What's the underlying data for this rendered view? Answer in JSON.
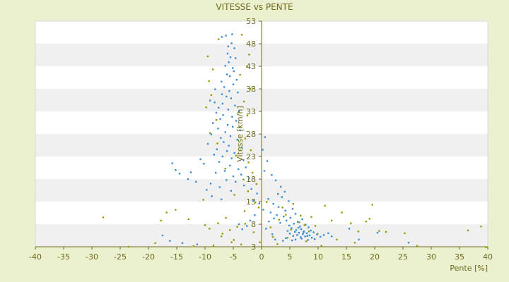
{
  "chart_data": {
    "type": "scatter",
    "title": "VITESSE vs PENTE",
    "xlabel": "Pente [%]",
    "ylabel": "Vitesse [km/h]",
    "xlim": [
      -40,
      40
    ],
    "ylim": [
      3,
      53
    ],
    "x_ticks": [
      -40,
      -35,
      -30,
      -25,
      -20,
      -15,
      -10,
      -5,
      0,
      5,
      10,
      15,
      20,
      25,
      30,
      35,
      40
    ],
    "y_ticks": [
      3,
      8,
      13,
      18,
      23,
      28,
      33,
      38,
      43,
      48,
      53
    ],
    "grid": "horizontal-bands",
    "colors": {
      "background": "#ebf1cf",
      "plot_band_light": "#ffffff",
      "plot_band_dark": "#f0f0f0",
      "axis": "#6e6a1f",
      "series_main": "#3b8fd8",
      "series_secondary": "#9a9a00"
    },
    "series": [
      {
        "color": "#3b8fd8",
        "points": [
          [
            -7.0,
            49.5
          ],
          [
            -6.3,
            49.8
          ],
          [
            -5.2,
            50.1
          ],
          [
            -5.9,
            47.4
          ],
          [
            -5.3,
            48.1
          ],
          [
            -4.8,
            47.0
          ],
          [
            -6.0,
            45.8
          ],
          [
            -5.5,
            45.0
          ],
          [
            -4.6,
            44.8
          ],
          [
            -5.8,
            43.9
          ],
          [
            -6.4,
            43.1
          ],
          [
            -5.1,
            42.6
          ],
          [
            -4.9,
            41.9
          ],
          [
            -6.1,
            41.2
          ],
          [
            -5.6,
            40.8
          ],
          [
            -4.4,
            40.0
          ],
          [
            -7.1,
            39.6
          ],
          [
            -5.0,
            39.0
          ],
          [
            -6.6,
            38.4
          ],
          [
            -8.2,
            37.9
          ],
          [
            -5.7,
            37.5
          ],
          [
            -4.2,
            37.2
          ],
          [
            -7.0,
            36.8
          ],
          [
            -6.2,
            36.3
          ],
          [
            -5.4,
            35.9
          ],
          [
            -9.1,
            35.4
          ],
          [
            -8.3,
            35.0
          ],
          [
            -6.9,
            34.7
          ],
          [
            -4.7,
            34.3
          ],
          [
            -7.6,
            33.8
          ],
          [
            -5.9,
            33.4
          ],
          [
            -4.0,
            33.0
          ],
          [
            -8.0,
            32.7
          ],
          [
            -6.8,
            32.2
          ],
          [
            -5.2,
            31.8
          ],
          [
            -7.3,
            31.3
          ],
          [
            -4.5,
            30.9
          ],
          [
            -8.6,
            30.4
          ],
          [
            -6.0,
            30.0
          ],
          [
            -5.1,
            29.6
          ],
          [
            -7.7,
            29.2
          ],
          [
            -3.8,
            28.8
          ],
          [
            -6.4,
            28.4
          ],
          [
            -8.9,
            27.9
          ],
          [
            -5.5,
            27.5
          ],
          [
            -7.2,
            27.1
          ],
          [
            -4.3,
            26.7
          ],
          [
            -6.7,
            26.2
          ],
          [
            -9.5,
            25.8
          ],
          [
            -5.8,
            25.4
          ],
          [
            -3.5,
            25.0
          ],
          [
            -7.9,
            24.6
          ],
          [
            -6.1,
            24.2
          ],
          [
            -4.8,
            23.8
          ],
          [
            -8.4,
            23.4
          ],
          [
            -6.9,
            23.0
          ],
          [
            -5.3,
            22.6
          ],
          [
            -3.2,
            22.2
          ],
          [
            -7.5,
            21.8
          ],
          [
            -10.2,
            21.4
          ],
          [
            -5.6,
            21.0
          ],
          [
            -2.8,
            20.6
          ],
          [
            -4.1,
            20.2
          ],
          [
            -6.5,
            19.8
          ],
          [
            -8.1,
            19.4
          ],
          [
            -3.6,
            19.0
          ],
          [
            -5.0,
            18.6
          ],
          [
            -2.2,
            18.2
          ],
          [
            -6.2,
            17.8
          ],
          [
            -4.6,
            17.4
          ],
          [
            -9.0,
            17.0
          ],
          [
            -3.1,
            16.6
          ],
          [
            -7.4,
            16.2
          ],
          [
            -1.8,
            15.8
          ],
          [
            -5.4,
            15.4
          ],
          [
            -15.8,
            21.5
          ],
          [
            -15.2,
            20.0
          ],
          [
            -14.5,
            19.2
          ],
          [
            -13.0,
            18.0
          ],
          [
            -12.5,
            19.5
          ],
          [
            -10.8,
            22.4
          ],
          [
            -11.6,
            17.4
          ],
          [
            -9.7,
            15.6
          ],
          [
            -8.8,
            14.2
          ],
          [
            -7.1,
            13.5
          ],
          [
            -0.8,
            14.8
          ],
          [
            -1.5,
            13.2
          ],
          [
            -0.4,
            12.6
          ],
          [
            0.6,
            27.3
          ],
          [
            0.2,
            24.5
          ],
          [
            1.0,
            22.0
          ],
          [
            0.5,
            19.8
          ],
          [
            1.8,
            18.9
          ],
          [
            2.5,
            17.7
          ],
          [
            3.4,
            16.3
          ],
          [
            4.1,
            15.2
          ],
          [
            2.9,
            14.7
          ],
          [
            3.6,
            14.0
          ],
          [
            1.2,
            13.6
          ],
          [
            4.8,
            13.1
          ],
          [
            2.1,
            12.5
          ],
          [
            3.0,
            11.8
          ],
          [
            5.5,
            11.4
          ],
          [
            4.2,
            11.0
          ],
          [
            1.6,
            10.6
          ],
          [
            6.0,
            10.3
          ],
          [
            2.7,
            10.0
          ],
          [
            3.9,
            9.7
          ],
          [
            5.1,
            9.4
          ],
          [
            7.2,
            9.1
          ],
          [
            4.4,
            8.8
          ],
          [
            6.4,
            8.5
          ],
          [
            3.3,
            8.3
          ],
          [
            5.7,
            8.1
          ],
          [
            7.8,
            7.9
          ],
          [
            4.9,
            7.7
          ],
          [
            6.8,
            7.5
          ],
          [
            8.3,
            7.3
          ],
          [
            5.3,
            7.1
          ],
          [
            7.0,
            6.9
          ],
          [
            6.1,
            6.7
          ],
          [
            8.7,
            6.6
          ],
          [
            4.6,
            6.5
          ],
          [
            7.5,
            6.4
          ],
          [
            5.9,
            6.3
          ],
          [
            9.2,
            6.2
          ],
          [
            6.6,
            6.1
          ],
          [
            8.0,
            6.0
          ],
          [
            5.0,
            5.9
          ],
          [
            7.3,
            5.8
          ],
          [
            9.8,
            5.7
          ],
          [
            6.3,
            5.6
          ],
          [
            8.5,
            5.5
          ],
          [
            5.6,
            5.4
          ],
          [
            7.7,
            5.3
          ],
          [
            10.4,
            5.2
          ],
          [
            6.9,
            5.1
          ],
          [
            8.9,
            5.0
          ],
          [
            4.3,
            4.9
          ],
          [
            7.1,
            4.8
          ],
          [
            9.4,
            4.7
          ],
          [
            6.0,
            4.6
          ],
          [
            8.2,
            4.5
          ],
          [
            5.4,
            4.4
          ],
          [
            11.0,
            5.6
          ],
          [
            11.8,
            6.0
          ],
          [
            12.4,
            5.3
          ],
          [
            3.8,
            4.3
          ],
          [
            2.4,
            4.6
          ],
          [
            1.9,
            5.8
          ],
          [
            0.8,
            7.0
          ],
          [
            1.3,
            8.6
          ],
          [
            2.2,
            9.3
          ],
          [
            0.3,
            11.2
          ],
          [
            -1.2,
            10.0
          ],
          [
            -2.0,
            8.8
          ],
          [
            -2.6,
            7.6
          ],
          [
            -3.4,
            6.9
          ],
          [
            -4.0,
            8.0
          ],
          [
            -17.5,
            5.5
          ],
          [
            -16.2,
            4.3
          ],
          [
            -14.0,
            3.8
          ],
          [
            -11.4,
            3.5
          ],
          [
            15.5,
            7.0
          ],
          [
            17.2,
            4.6
          ],
          [
            20.5,
            6.1
          ],
          [
            26.0,
            3.9
          ],
          [
            6.5,
            7.2
          ],
          [
            7.4,
            6.2
          ],
          [
            8.1,
            5.4
          ]
        ]
      },
      {
        "color": "#9a9a00",
        "points": [
          [
            -3.5,
            50.0
          ],
          [
            -7.6,
            49.0
          ],
          [
            -2.2,
            45.6
          ],
          [
            -9.5,
            45.2
          ],
          [
            -2.6,
            43.0
          ],
          [
            -8.6,
            42.3
          ],
          [
            -3.8,
            41.1
          ],
          [
            -9.3,
            39.7
          ],
          [
            -2.0,
            38.0
          ],
          [
            -8.9,
            36.6
          ],
          [
            -3.1,
            35.2
          ],
          [
            -9.8,
            33.9
          ],
          [
            -2.5,
            32.1
          ],
          [
            -8.0,
            31.1
          ],
          [
            -3.9,
            29.5
          ],
          [
            -9.1,
            28.2
          ],
          [
            -2.9,
            27.0
          ],
          [
            -7.8,
            25.9
          ],
          [
            -1.9,
            24.4
          ],
          [
            -4.5,
            23.2
          ],
          [
            -2.3,
            21.7
          ],
          [
            -6.4,
            20.3
          ],
          [
            -1.6,
            19.4
          ],
          [
            -3.2,
            17.9
          ],
          [
            -0.9,
            16.9
          ],
          [
            -2.4,
            15.3
          ],
          [
            -4.8,
            14.5
          ],
          [
            -1.1,
            12.8
          ],
          [
            -0.5,
            11.7
          ],
          [
            -3.0,
            10.9
          ],
          [
            -28.0,
            9.5
          ],
          [
            -23.5,
            3.0
          ],
          [
            -18.8,
            3.8
          ],
          [
            -17.8,
            8.8
          ],
          [
            -16.8,
            10.6
          ],
          [
            -15.2,
            11.2
          ],
          [
            -12.9,
            9.1
          ],
          [
            -12.0,
            3.1
          ],
          [
            -10.3,
            13.4
          ],
          [
            -10.0,
            7.8
          ],
          [
            -9.2,
            7.0
          ],
          [
            -8.5,
            3.3
          ],
          [
            -7.1,
            5.3
          ],
          [
            -6.3,
            9.4
          ],
          [
            -5.6,
            6.7
          ],
          [
            -4.9,
            4.5
          ],
          [
            -4.3,
            7.4
          ],
          [
            -3.6,
            3.5
          ],
          [
            -2.9,
            8.1
          ],
          [
            -1.4,
            6.2
          ],
          [
            -0.3,
            4.0
          ],
          [
            0.9,
            12.9
          ],
          [
            1.6,
            7.3
          ],
          [
            2.8,
            3.6
          ],
          [
            3.7,
            11.7
          ],
          [
            4.6,
            5.0
          ],
          [
            5.6,
            12.5
          ],
          [
            6.7,
            8.4
          ],
          [
            7.9,
            4.2
          ],
          [
            8.8,
            9.6
          ],
          [
            9.5,
            7.6
          ],
          [
            10.6,
            3.2
          ],
          [
            11.2,
            12.1
          ],
          [
            12.4,
            8.8
          ],
          [
            13.3,
            4.6
          ],
          [
            14.2,
            10.6
          ],
          [
            15.8,
            8.2
          ],
          [
            16.5,
            3.9
          ],
          [
            17.1,
            6.4
          ],
          [
            18.5,
            8.6
          ],
          [
            19.1,
            9.2
          ],
          [
            19.6,
            12.3
          ],
          [
            20.8,
            6.5
          ],
          [
            22.0,
            6.3
          ],
          [
            25.3,
            6.0
          ],
          [
            27.5,
            3.2
          ],
          [
            36.5,
            6.6
          ],
          [
            38.8,
            7.5
          ],
          [
            39.7,
            2.9
          ],
          [
            4.3,
            10.1
          ],
          [
            5.2,
            6.8
          ],
          [
            6.9,
            9.9
          ],
          [
            7.6,
            7.8
          ],
          [
            8.4,
            6.4
          ],
          [
            9.9,
            5.9
          ],
          [
            3.1,
            9.0
          ],
          [
            2.0,
            5.2
          ],
          [
            -7.7,
            8.2
          ],
          [
            -6.9,
            5.9
          ],
          [
            -5.3,
            4.0
          ]
        ]
      }
    ]
  }
}
